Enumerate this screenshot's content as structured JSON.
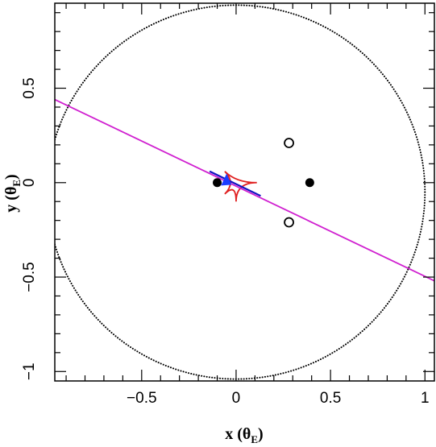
{
  "chart_data": {
    "type": "scatter",
    "xlabel": "x (θE)",
    "ylabel": "y (θE)",
    "xlabel_parts": {
      "main": "x (θ",
      "sub": "E",
      "close": ")"
    },
    "ylabel_parts": {
      "main": "y (θ",
      "sub": "E",
      "close": ")"
    },
    "xlim": [
      -0.96,
      1.05
    ],
    "ylim": [
      -1.05,
      0.95
    ],
    "xticks": [
      -0.5,
      0,
      0.5,
      1
    ],
    "xtick_labels": [
      "−0.5",
      "0",
      "0.5",
      "1"
    ],
    "yticks": [
      -1,
      -0.5,
      0,
      0.5
    ],
    "ytick_labels": [
      "−1",
      "−0.5",
      "0",
      "0.5"
    ],
    "x_minor_step": 0.1,
    "y_minor_step": 0.1,
    "grid": false,
    "series": [
      {
        "kind": "critical-curve",
        "style": "dotted",
        "color": "#000000",
        "center": [
          0.0,
          -0.05
        ],
        "radii": [
          1.0,
          0.99
        ]
      },
      {
        "kind": "caustic",
        "style": "solid",
        "color": "#e02020",
        "center": [
          0.0,
          -0.0
        ],
        "cusps": [
          [
            -0.06,
            0.06
          ],
          [
            0.11,
            0.0
          ],
          [
            0.0,
            -0.1
          ],
          [
            -0.06,
            -0.06
          ]
        ]
      },
      {
        "kind": "source-trajectory",
        "style": "solid",
        "color": "#d020d0",
        "points": [
          [
            -0.96,
            0.44
          ],
          [
            1.05,
            -0.52
          ]
        ]
      },
      {
        "kind": "trajectory-highlight",
        "style": "solid",
        "color": "#1010c0",
        "points": [
          [
            -0.14,
            0.06
          ],
          [
            0.13,
            -0.07
          ]
        ]
      },
      {
        "kind": "source",
        "marker": "triangle",
        "color": "#1a3cff",
        "points": [
          [
            -0.05,
            0.01
          ]
        ]
      },
      {
        "kind": "lens-masses",
        "marker": "filled-circle",
        "color": "#000000",
        "points": [
          [
            -0.1,
            0.0
          ],
          [
            0.39,
            0.0
          ]
        ]
      },
      {
        "kind": "images",
        "marker": "open-circle",
        "color": "#000000",
        "points": [
          [
            0.28,
            0.21
          ],
          [
            0.28,
            -0.21
          ]
        ]
      }
    ]
  }
}
